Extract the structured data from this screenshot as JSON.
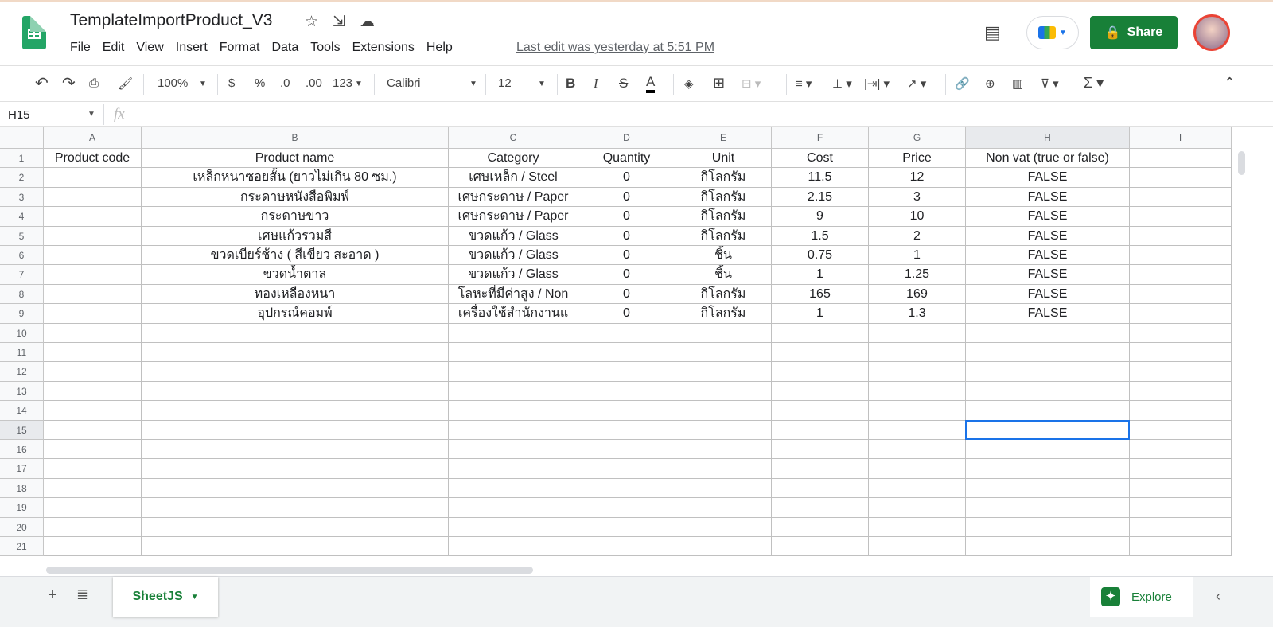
{
  "app": {
    "title": "TemplateImportProduct_V3",
    "last_edit": "Last edit was yesterday at 5:51 PM",
    "share_label": "Share",
    "menu": [
      "File",
      "Edit",
      "View",
      "Insert",
      "Format",
      "Data",
      "Tools",
      "Extensions",
      "Help"
    ]
  },
  "toolbar": {
    "zoom": "100%",
    "currency": "$",
    "percent": "%",
    "dec_less": ".0",
    "dec_more": ".00",
    "more_formats": "123",
    "font": "Calibri",
    "font_size": "12"
  },
  "formula_bar": {
    "cell_ref": "H15",
    "fx": "fx",
    "value": ""
  },
  "columns": [
    "A",
    "B",
    "C",
    "D",
    "E",
    "F",
    "G",
    "H",
    "I"
  ],
  "rows": [
    [
      "Product code",
      "Product name",
      "Category",
      "Quantity",
      "Unit",
      "Cost",
      "Price",
      "Non vat (true or false)",
      ""
    ],
    [
      "",
      "เหล็กหนาซอยสั้น (ยาวไม่เกิน 80 ซม.)",
      "เศษเหล็ก / Steel",
      "0",
      "กิโลกรัม",
      "11.5",
      "12",
      "FALSE",
      ""
    ],
    [
      "",
      "กระดาษหนังสือพิมพ์",
      "เศษกระดาษ / Paper",
      "0",
      "กิโลกรัม",
      "2.15",
      "3",
      "FALSE",
      ""
    ],
    [
      "",
      "กระดาษขาว",
      "เศษกระดาษ / Paper",
      "0",
      "กิโลกรัม",
      "9",
      "10",
      "FALSE",
      ""
    ],
    [
      "",
      "เศษแก้วรวมสี",
      "ขวดแก้ว / Glass",
      "0",
      "กิโลกรัม",
      "1.5",
      "2",
      "FALSE",
      ""
    ],
    [
      "",
      "ขวดเบียร์ช้าง ( สีเขียว สะอาด )",
      "ขวดแก้ว / Glass",
      "0",
      "ชิ้น",
      "0.75",
      "1",
      "FALSE",
      ""
    ],
    [
      "",
      "ขวดน้ำตาล",
      "ขวดแก้ว / Glass",
      "0",
      "ชิ้น",
      "1",
      "1.25",
      "FALSE",
      ""
    ],
    [
      "",
      "ทองเหลืองหนา",
      "โลหะที่มีค่าสูง / Non",
      "0",
      "กิโลกรัม",
      "165",
      "169",
      "FALSE",
      ""
    ],
    [
      "",
      "อุปกรณ์คอมพ์",
      "เครื่องใช้สำนักงานแ",
      "0",
      "กิโลกรัม",
      "1",
      "1.3",
      "FALSE",
      ""
    ]
  ],
  "row_count": 21,
  "selected_cell": "H15",
  "sheets": [
    {
      "name": "SheetJS",
      "active": true
    }
  ],
  "explore_label": "Explore",
  "colors": {
    "accent": "#188038",
    "selection": "#1a73e8"
  }
}
